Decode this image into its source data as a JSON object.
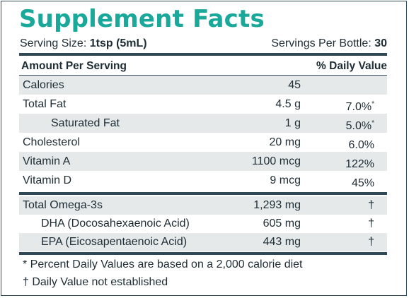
{
  "title": "Supplement Facts",
  "serving": {
    "size_label": "Serving Size: ",
    "size_value": "1tsp (5mL)",
    "per_container_label": "Servings Per Bottle: ",
    "per_container_value": "30"
  },
  "header": {
    "amount_label": "Amount Per Serving",
    "dv_label": "% Daily Value"
  },
  "nutrients": [
    {
      "name": "Calories",
      "amount": "45",
      "dv": "",
      "dv_mark": ""
    },
    {
      "name": "Total Fat",
      "amount": "4.5 g",
      "dv": "7.0%",
      "dv_mark": "*"
    },
    {
      "name": "Saturated Fat",
      "amount": "1 g",
      "dv": "5.0%",
      "dv_mark": "*"
    },
    {
      "name": "Cholesterol",
      "amount": "20 mg",
      "dv": "6.0%",
      "dv_mark": ""
    },
    {
      "name": "Vitamin A",
      "amount": "1100 mcg",
      "dv": "122%",
      "dv_mark": ""
    },
    {
      "name": "Vitamin D",
      "amount": "9 mcg",
      "dv": "45%",
      "dv_mark": ""
    }
  ],
  "omega": [
    {
      "name": "Total Omega-3s",
      "amount": "1,293 mg",
      "dv": "†"
    },
    {
      "name": "DHA (Docosahexaenoic Acid)",
      "amount": "605 mg",
      "dv": "†"
    },
    {
      "name": "EPA (Eicosapentaenoic Acid)",
      "amount": "443 mg",
      "dv": "†"
    }
  ],
  "footnotes": {
    "daily_value_note": "* Percent Daily Values are based on a 2,000 calorie diet",
    "not_established_note": "† Daily Value not established"
  }
}
